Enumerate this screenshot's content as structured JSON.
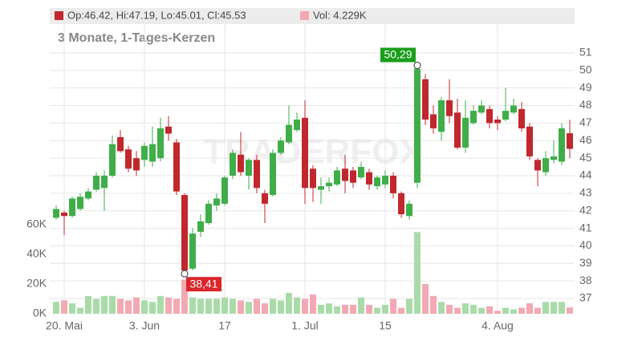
{
  "chart_data": {
    "type": "candlestick",
    "subtitle": "3 Monate, 1-Tages-Kerzen",
    "watermark": "TRADERFOX",
    "legend": {
      "ohlc": "Op:46.42, Hi:47.19, Lo:45.01, Cl:45.53",
      "volume": "Vol: 4.229K"
    },
    "categories": [
      null,
      "20. Mai",
      null,
      null,
      null,
      null,
      null,
      null,
      null,
      null,
      null,
      "3. Jun",
      null,
      null,
      null,
      null,
      null,
      null,
      null,
      null,
      null,
      "17",
      null,
      null,
      null,
      null,
      null,
      null,
      null,
      null,
      null,
      "1. Jul",
      null,
      null,
      null,
      null,
      null,
      null,
      null,
      null,
      null,
      "15",
      null,
      null,
      null,
      null,
      null,
      null,
      null,
      null,
      null,
      null,
      null,
      null,
      null,
      "4. Aug",
      null,
      null,
      null,
      null,
      null,
      null,
      null,
      null,
      null
    ],
    "open": [
      41.6,
      41.9,
      41.7,
      42.1,
      42.7,
      43.2,
      43.3,
      44.0,
      46.2,
      45.5,
      45.0,
      44.9,
      44.8,
      45.0,
      46.8,
      45.9,
      42.9,
      38.7,
      40.8,
      41.3,
      42.3,
      42.4,
      44.0,
      45.2,
      44.0,
      44.9,
      43.0,
      42.9,
      45.3,
      45.9,
      46.6,
      47.3,
      44.4,
      43.2,
      43.4,
      43.5,
      44.4,
      44.3,
      43.9,
      44.2,
      43.4,
      43.5,
      44.0,
      43.0,
      41.7,
      43.6,
      49.5,
      47.5,
      46.5,
      48.3,
      47.6,
      45.6,
      47.0,
      47.6,
      47.8,
      47.2,
      47.2,
      47.6,
      47.8,
      46.8,
      44.9,
      44.2,
      44.9,
      44.8,
      46.42
    ],
    "high": [
      42.3,
      42.0,
      42.8,
      43.0,
      43.3,
      44.2,
      44.3,
      46.3,
      46.6,
      45.7,
      45.4,
      45.9,
      46.8,
      47.3,
      47.4,
      46.1,
      43.0,
      41.0,
      41.8,
      42.6,
      43.0,
      44.0,
      45.5,
      46.5,
      45.0,
      45.2,
      43.2,
      45.5,
      46.2,
      48.0,
      47.6,
      48.3,
      44.6,
      43.9,
      43.9,
      44.5,
      45.2,
      44.5,
      44.8,
      44.4,
      44.0,
      44.3,
      44.2,
      43.1,
      42.6,
      50.29,
      49.8,
      48.0,
      48.5,
      49.5,
      48.4,
      48.3,
      48.0,
      48.3,
      48.0,
      47.4,
      49.0,
      48.4,
      48.2,
      47.0,
      45.0,
      45.4,
      46.0,
      47.0,
      47.19
    ],
    "low": [
      41.5,
      40.6,
      41.6,
      42.0,
      42.6,
      43.1,
      42.0,
      43.9,
      45.3,
      44.2,
      44.0,
      44.5,
      44.5,
      44.8,
      46.0,
      42.9,
      38.41,
      38.6,
      40.5,
      41.2,
      42.0,
      42.3,
      43.8,
      44.0,
      43.2,
      43.0,
      41.3,
      42.8,
      45.2,
      45.8,
      46.5,
      42.4,
      42.5,
      42.4,
      43.1,
      43.4,
      43.0,
      43.3,
      43.8,
      43.2,
      43.2,
      43.3,
      42.7,
      41.6,
      41.5,
      43.3,
      46.9,
      46.4,
      46.0,
      47.0,
      45.5,
      45.3,
      46.9,
      47.5,
      46.7,
      46.6,
      47.1,
      47.5,
      46.5,
      44.9,
      43.4,
      44.0,
      44.7,
      44.6,
      45.01
    ],
    "close": [
      42.1,
      41.7,
      42.7,
      42.8,
      43.1,
      44.0,
      44.0,
      45.8,
      45.4,
      44.4,
      44.3,
      45.7,
      45.8,
      46.7,
      46.4,
      43.1,
      38.6,
      40.7,
      41.4,
      42.4,
      42.7,
      43.9,
      45.3,
      44.2,
      44.9,
      43.3,
      42.4,
      45.3,
      46.0,
      46.9,
      47.2,
      43.3,
      43.3,
      43.4,
      43.6,
      44.3,
      43.7,
      43.6,
      44.5,
      43.5,
      43.9,
      44.0,
      43.0,
      41.8,
      42.4,
      50.1,
      47.2,
      46.7,
      48.3,
      47.4,
      45.6,
      47.3,
      47.7,
      48.0,
      47.0,
      47.0,
      47.7,
      48.0,
      46.7,
      45.1,
      44.3,
      45.0,
      45.1,
      46.7,
      45.53
    ],
    "volume": [
      8,
      9,
      7,
      4,
      12,
      10,
      12,
      12,
      10,
      9,
      11,
      9,
      8,
      12,
      11,
      10,
      23,
      11,
      10,
      10,
      10,
      11,
      10,
      9,
      8,
      10,
      7,
      10,
      9,
      14,
      11,
      10,
      13,
      6,
      7,
      5,
      6,
      6,
      11,
      6,
      4,
      6,
      10,
      4,
      10,
      55,
      20,
      12,
      8,
      6,
      4,
      7,
      6,
      4,
      5,
      2,
      4,
      3,
      4,
      7,
      4,
      8,
      8,
      8,
      4.229
    ],
    "up_color": "#3fae49",
    "down_color": "#c0282d",
    "volume_up_color": "#a9dba9",
    "volume_down_color": "#f2a9b3",
    "annotations": [
      {
        "label": "50,29",
        "value": 50.29
      },
      {
        "label": "38,41",
        "value": 38.41
      }
    ],
    "ylim": [
      36.13,
      53.56
    ],
    "yticks": [
      37,
      38,
      39,
      40,
      41,
      42,
      43,
      44,
      45,
      46,
      47,
      48,
      49,
      50,
      51
    ],
    "y2lim": [
      0,
      206
    ],
    "y2ticks": [
      {
        "value": 0,
        "label": "0K"
      },
      {
        "value": 20,
        "label": "20K"
      },
      {
        "value": 40,
        "label": "40K"
      },
      {
        "value": 60,
        "label": "60K"
      }
    ],
    "grid": true
  }
}
